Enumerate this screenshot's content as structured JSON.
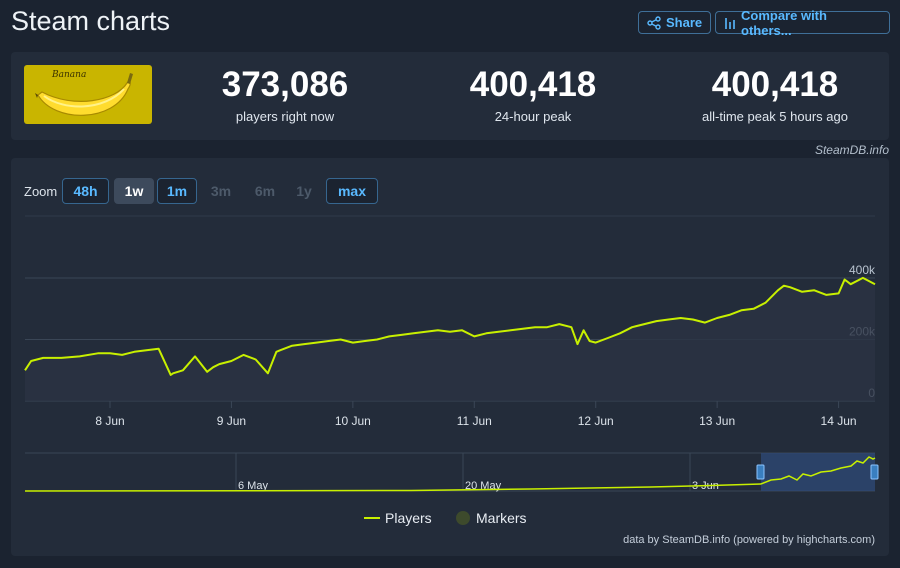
{
  "page": {
    "title": "Steam charts"
  },
  "header": {
    "share_label": "Share",
    "compare_label": "Compare with others..."
  },
  "game": {
    "logo_text": "Banana"
  },
  "stats": [
    {
      "value": "373,086",
      "label": "players right now"
    },
    {
      "value": "400,418",
      "label": "24-hour peak"
    },
    {
      "value": "400,418",
      "label": "all-time peak 5 hours ago"
    }
  ],
  "credit": "SteamDB.info",
  "zoom": {
    "label": "Zoom",
    "options": [
      {
        "label": "48h",
        "state": "enabled"
      },
      {
        "label": "1w",
        "state": "active"
      },
      {
        "label": "1m",
        "state": "enabled"
      },
      {
        "label": "3m",
        "state": "disabled"
      },
      {
        "label": "6m",
        "state": "disabled"
      },
      {
        "label": "1y",
        "state": "disabled"
      },
      {
        "label": "max",
        "state": "enabled"
      }
    ]
  },
  "colors": {
    "series": "#c8f000",
    "marker": "#3d4a2c",
    "accent": "#59b9ff"
  },
  "footer": {
    "credit": "data by SteamDB.info (powered by highcharts.com)"
  },
  "chart_data": {
    "type": "area",
    "y_ticks": [
      "400k",
      "200k",
      "0"
    ],
    "ylim": [
      0,
      400000
    ],
    "x_ticks": [
      "8 Jun",
      "9 Jun",
      "10 Jun",
      "11 Jun",
      "12 Jun",
      "13 Jun",
      "14 Jun"
    ],
    "xlim_days": [
      7.3,
      14.3
    ],
    "series": [
      {
        "name": "Players",
        "x_days": [
          7.3,
          7.35,
          7.45,
          7.6,
          7.75,
          7.9,
          8.0,
          8.1,
          8.2,
          8.3,
          8.4,
          8.5,
          8.52,
          8.6,
          8.7,
          8.8,
          8.85,
          8.9,
          9.0,
          9.1,
          9.2,
          9.3,
          9.37,
          9.4,
          9.5,
          9.6,
          9.7,
          9.8,
          9.9,
          10.0,
          10.1,
          10.2,
          10.3,
          10.4,
          10.5,
          10.6,
          10.7,
          10.8,
          10.9,
          11.0,
          11.1,
          11.2,
          11.3,
          11.4,
          11.5,
          11.6,
          11.7,
          11.8,
          11.85,
          11.9,
          11.95,
          12.0,
          12.1,
          12.2,
          12.3,
          12.4,
          12.5,
          12.6,
          12.7,
          12.8,
          12.9,
          13.0,
          13.1,
          13.2,
          13.3,
          13.4,
          13.5,
          13.55,
          13.6,
          13.7,
          13.8,
          13.9,
          14.0,
          14.05,
          14.1,
          14.2,
          14.3
        ],
        "values": [
          100000,
          130000,
          140000,
          140000,
          145000,
          155000,
          155000,
          150000,
          160000,
          165000,
          170000,
          85000,
          90000,
          100000,
          145000,
          95000,
          110000,
          120000,
          130000,
          150000,
          135000,
          90000,
          160000,
          165000,
          180000,
          185000,
          190000,
          195000,
          200000,
          190000,
          195000,
          200000,
          210000,
          215000,
          220000,
          225000,
          230000,
          225000,
          230000,
          210000,
          220000,
          225000,
          230000,
          235000,
          240000,
          240000,
          250000,
          240000,
          185000,
          230000,
          195000,
          190000,
          205000,
          220000,
          240000,
          250000,
          260000,
          265000,
          270000,
          265000,
          255000,
          270000,
          280000,
          295000,
          300000,
          320000,
          360000,
          375000,
          370000,
          355000,
          360000,
          345000,
          350000,
          395000,
          380000,
          400418,
          380000
        ]
      },
      {
        "name": "Markers",
        "values": []
      }
    ],
    "navigator": {
      "labels": [
        "6 May",
        "20 May",
        "3 Jun"
      ]
    },
    "legend": "bottom-center",
    "grid": true
  }
}
